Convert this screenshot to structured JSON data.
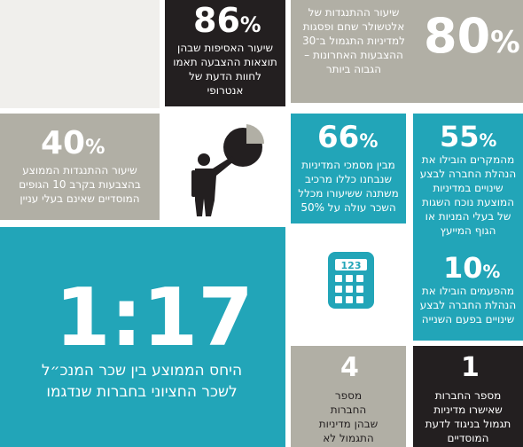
{
  "stats": {
    "s86": {
      "value": "86",
      "unit": "%",
      "text": "שיעור האסיפות שבהן תוצאות ההצבעה תאמו לחוות הדעת של אנטרופי"
    },
    "s80": {
      "value": "80",
      "unit": "%",
      "text": "שיעור ההתנגדות של אלטשולר שחם ופסגות למדיניות התגמול ב־30 ההצבעות האחרונות – הגבוה ביותר"
    },
    "s40": {
      "value": "40",
      "unit": "%",
      "text": "שיעור ההתנגדות הממוצע בהצבעות בקרב 10 הגופים המוסדיים שאינם בעלי עניין"
    },
    "s66": {
      "value": "66",
      "unit": "%",
      "text": "מבין מסמכי המדיניות שנבחנו כללו מרכיב משתנה ששיעורו מכלל השכר עולה על 50%"
    },
    "s55": {
      "value": "55",
      "unit": "%",
      "text": "מהמקרים הובילו את הנהלת החברה לבצע שינויים במדיניות המוצעת נוכח השגות של בעלי המניות או הגוף המייעץ"
    },
    "s10": {
      "value": "10",
      "unit": "%",
      "text": "מהפעמים הובילו את הנהלת החברה לבצע שינויים בפעם השנייה"
    },
    "ratio": {
      "value": "1:17",
      "text": "היחס הממוצע בין שכר המנכ״ל לשכר החציוני בחברות שנדגמו"
    },
    "s4": {
      "value": "4",
      "text": "מספר החברות שבהן מדיניות התגמול לא עברה"
    },
    "s1": {
      "value": "1",
      "text": "מספר החברות שאישרו מדיניות תגמול בניגוד לדעת המוסדיים"
    }
  },
  "calculator": {
    "display": "123"
  },
  "colors": {
    "teal": "#22a5b8",
    "gray": "#b1afa5",
    "dark": "#231f20"
  }
}
